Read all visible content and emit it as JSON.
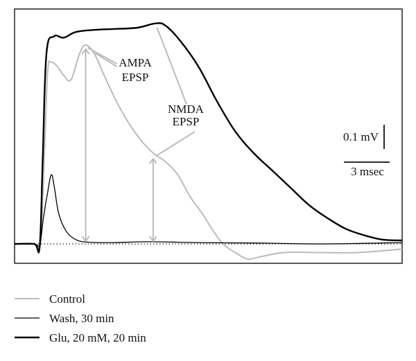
{
  "chart_data": {
    "type": "line",
    "xlabel": "",
    "ylabel": "",
    "xlim": [
      0,
      31.6
    ],
    "ylim": [
      -0.05,
      0.52
    ],
    "baseline": 0,
    "grid": false,
    "legend_position": "bottom-left",
    "series": [
      {
        "name": "Control",
        "color": "#bbbbbb",
        "stroke_width": 2,
        "points": [
          [
            0,
            0
          ],
          [
            1.6,
            0
          ],
          [
            2.1,
            0
          ],
          [
            2.45,
            0.22
          ],
          [
            2.7,
            0.4
          ],
          [
            3.0,
            0.42
          ],
          [
            3.5,
            0.41
          ],
          [
            4.0,
            0.39
          ],
          [
            4.6,
            0.38
          ],
          [
            5.3,
            0.44
          ],
          [
            5.8,
            0.46
          ],
          [
            6.5,
            0.44
          ],
          [
            7.3,
            0.39
          ],
          [
            8.3,
            0.33
          ],
          [
            9.3,
            0.28
          ],
          [
            10.3,
            0.24
          ],
          [
            11.3,
            0.21
          ],
          [
            12.3,
            0.19
          ],
          [
            13.3,
            0.16
          ],
          [
            14.3,
            0.11
          ],
          [
            15.3,
            0.07
          ],
          [
            16.2,
            0.03
          ],
          [
            17.0,
            0.0
          ],
          [
            18.0,
            -0.02
          ],
          [
            19.0,
            -0.035
          ],
          [
            20.0,
            -0.03
          ],
          [
            22.0,
            -0.02
          ],
          [
            25.0,
            -0.02
          ],
          [
            28.0,
            -0.02
          ],
          [
            31.6,
            -0.012
          ]
        ]
      },
      {
        "name": "Wash, 30 min",
        "color": "#000000",
        "stroke_width": 1.3,
        "points": [
          [
            0,
            0
          ],
          [
            1.6,
            0
          ],
          [
            2.05,
            -0.002
          ],
          [
            2.35,
            0.06
          ],
          [
            2.7,
            0.12
          ],
          [
            3.0,
            0.16
          ],
          [
            3.25,
            0.13
          ],
          [
            3.6,
            0.07
          ],
          [
            4.2,
            0.03
          ],
          [
            5.0,
            0.01
          ],
          [
            6.0,
            0.004
          ],
          [
            8.0,
            0.003
          ],
          [
            11.0,
            0.005
          ],
          [
            15.0,
            0.003
          ],
          [
            20.0,
            0.002
          ],
          [
            25.0,
            0.0
          ],
          [
            31.6,
            0.003
          ]
        ]
      },
      {
        "name": "Glu, 20 mM, 20 min",
        "color": "#000000",
        "stroke_width": 2.4,
        "points": [
          [
            0,
            0
          ],
          [
            1.6,
            0
          ],
          [
            2.05,
            -0.005
          ],
          [
            2.3,
            0.2
          ],
          [
            2.6,
            0.44
          ],
          [
            3.2,
            0.48
          ],
          [
            4.0,
            0.477
          ],
          [
            5.0,
            0.49
          ],
          [
            6.5,
            0.495
          ],
          [
            8.0,
            0.497
          ],
          [
            10.0,
            0.5
          ],
          [
            11.5,
            0.51
          ],
          [
            12.3,
            0.505
          ],
          [
            13.5,
            0.47
          ],
          [
            15.0,
            0.41
          ],
          [
            16.5,
            0.33
          ],
          [
            18.0,
            0.26
          ],
          [
            19.5,
            0.21
          ],
          [
            21.0,
            0.17
          ],
          [
            22.5,
            0.13
          ],
          [
            24.0,
            0.09
          ],
          [
            25.5,
            0.06
          ],
          [
            27.0,
            0.035
          ],
          [
            28.5,
            0.02
          ],
          [
            30.0,
            0.01
          ],
          [
            31.6,
            0.008
          ]
        ]
      }
    ],
    "annotations": [
      {
        "text_lines": [
          "AMPA",
          "EPSP"
        ],
        "arrow_from": [
          6.2,
          0.41
        ],
        "arrow_to": [
          [
            5.8,
            0.46
          ],
          [
            5.9,
            0.46
          ]
        ],
        "vertical_at": 5.8
      },
      {
        "text_lines": [
          "NMDA",
          "EPSP"
        ],
        "arrow_from": [
          12.6,
          0.33
        ],
        "arrow_to": [
          [
            11.5,
            0.51
          ],
          [
            11.3,
            0.2
          ]
        ],
        "vertical_at": 11.3
      }
    ],
    "scale_bars": {
      "voltage_label": "0.1 mV",
      "voltage_value": 0.1,
      "time_label": "3 msec",
      "time_value": 3
    }
  }
}
